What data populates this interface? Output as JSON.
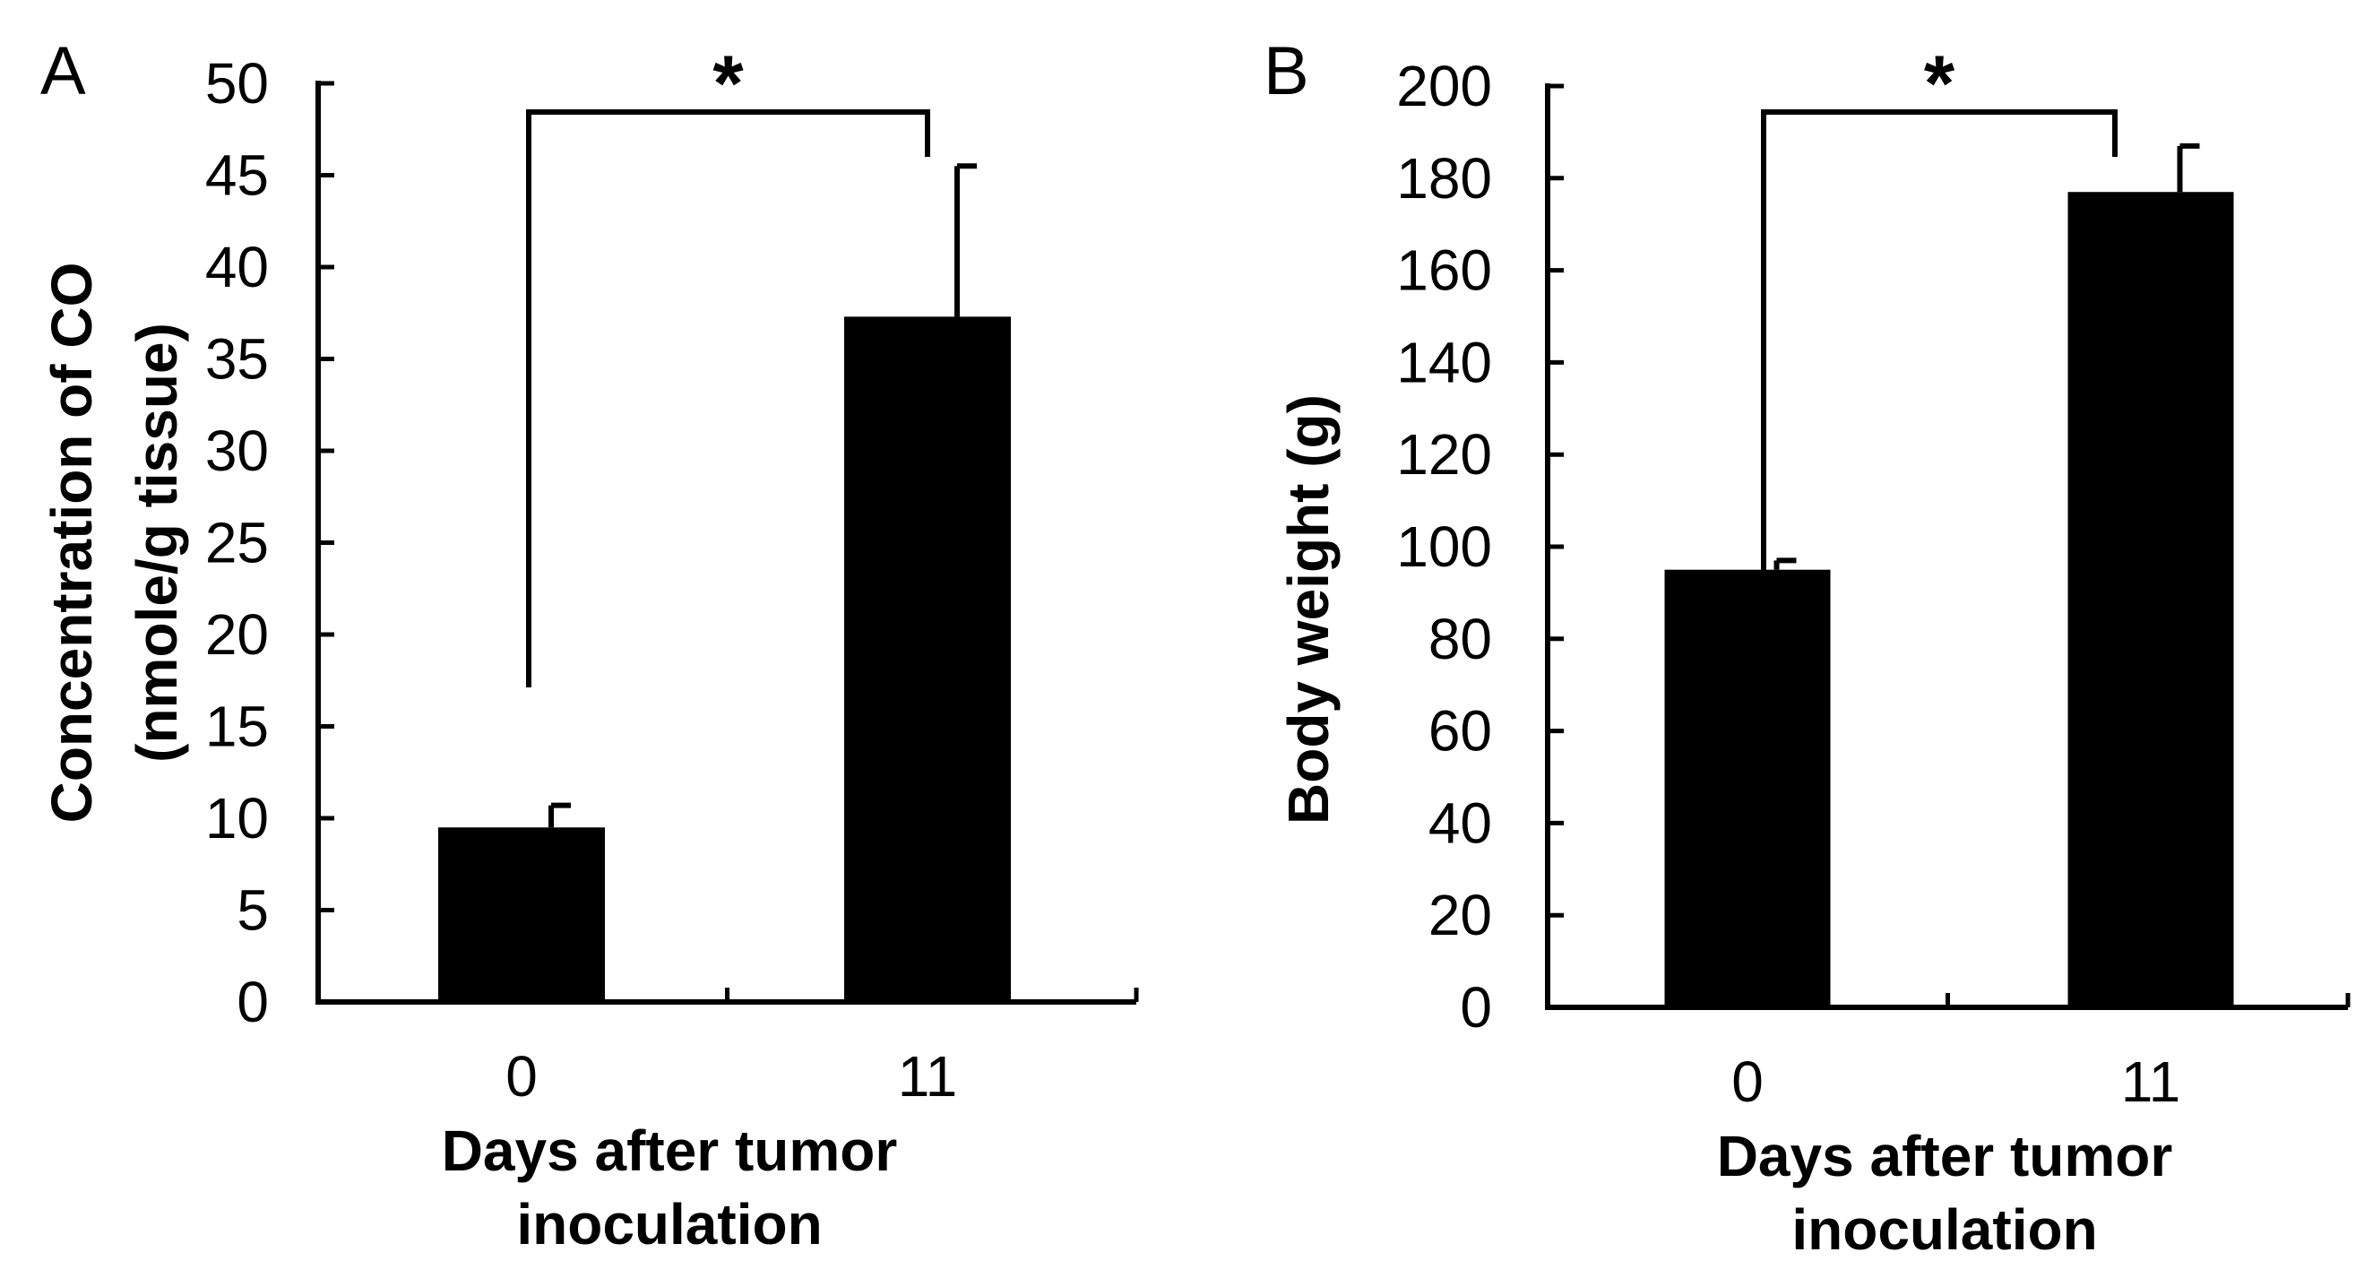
{
  "chart_data": [
    {
      "panel": "A",
      "type": "bar",
      "categories": [
        "0",
        "11"
      ],
      "values": [
        9.5,
        37.3
      ],
      "error_bars": [
        1.2,
        8.2
      ],
      "ylim": [
        0,
        50
      ],
      "yticks": [
        "0",
        "5",
        "10",
        "15",
        "20",
        "25",
        "30",
        "35",
        "40",
        "45",
        "50"
      ],
      "ylabel": [
        "Concentration of CO",
        "(nmole/g tissue)"
      ],
      "xlabel": [
        "Days after tumor",
        "inoculation"
      ],
      "significance": "*",
      "bar_color": "#000000"
    },
    {
      "panel": "B",
      "type": "bar",
      "categories": [
        "0",
        "11"
      ],
      "values": [
        95,
        177
      ],
      "error_bars": [
        2,
        10
      ],
      "ylim": [
        0,
        200
      ],
      "yticks": [
        "0",
        "20",
        "40",
        "60",
        "80",
        "100",
        "120",
        "140",
        "160",
        "180",
        "200"
      ],
      "ylabel": [
        "Body weight (g)"
      ],
      "xlabel": [
        "Days after tumor",
        "inoculation"
      ],
      "significance": "*",
      "bar_color": "#000000"
    }
  ]
}
